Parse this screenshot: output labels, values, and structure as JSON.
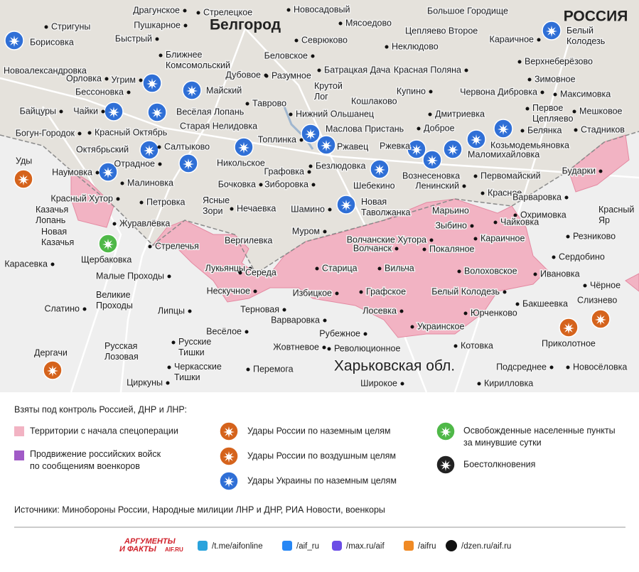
{
  "map": {
    "country_label": "РОССИЯ",
    "city_label": "Белгород",
    "region_label": "Харьковская обл.",
    "places": [
      "Драгунское",
      "Стрелецкое",
      "Новосадовый",
      "Большое Городище",
      "Стригуны",
      "Пушкарное",
      "Мясоедово",
      "Цепляево Второе",
      [
        "Белый",
        "Колодезь"
      ],
      "Борисовка",
      "Быстрый",
      "Севрюково",
      "Неклюдово",
      "Караичное",
      [
        "Ближнее",
        "Комсомольский"
      ],
      "Беловское",
      "Верхнеберёзово",
      "Новоалександровка",
      "Дубовое",
      "Разумное",
      "Батрацкая Дача",
      "Красная Поляна",
      "Угрим",
      "Орловка",
      "Майский",
      [
        "Крутой",
        "Лог"
      ],
      "Кошлаково",
      "Купино",
      "Зимовное",
      "Бессоновка",
      "Червона Дибровка",
      "Максимовка",
      "Таврово",
      "Байцуры",
      "Чайки",
      "Весёлая Лопань",
      "Нижний Ольшанец",
      "Дмитриевка",
      [
        "Первое",
        "Цепляево"
      ],
      "Мешковое",
      "Богун-Городок",
      "Красный Октябрь",
      "Старая Нелидовка",
      "Маслова Пристань",
      "Доброе",
      "Белянка",
      "Стадников",
      "Козьмодемьяновка",
      "Октябрьский",
      "Салтыково",
      "Топлинка",
      "Ржавец",
      "Ржевка",
      "Маломихайловка",
      "Наумовка",
      "Отрадное",
      "Никольское",
      "Безлюдовка",
      "Шебекино",
      "Вознесеновка",
      "Первомайский",
      "Бударки",
      "Уды",
      "Графовка",
      "Малиновка",
      "Бочковка",
      "Зиборовка",
      "Ленинский",
      "Красное",
      "Варваровка",
      "Красный Хутор",
      "Петровка",
      [
        "Ясные",
        "Зори"
      ],
      "Нечаевка",
      "Шамино",
      [
        "Новая",
        "Таволжанка"
      ],
      "Марьино",
      [
        "Красный",
        "Яр"
      ],
      [
        "Казачья",
        "Лопань"
      ],
      "Журавлёвка",
      "Охримовка",
      "Чайковка",
      "Зыбино",
      [
        "Новая",
        "Казачья"
      ],
      "Муром",
      "Резниково",
      "Вергилевка",
      "Волчанские Хутора",
      "Караичное",
      "Щербаковка",
      "Стрелечья",
      "Волчанск",
      "Покаляное",
      "Карасевка",
      "Сердобино",
      "Лукьянцы",
      "Середа",
      "Старица",
      "Вильча",
      "Волоховское",
      "Ивановка",
      "Малые Проходы",
      "Чёрное",
      "Нескучное",
      "Избицкое",
      "Графское",
      "Белый Колодезь",
      [
        "Великие",
        "Проходы"
      ],
      "Бакшеевка",
      "Слизнево",
      "Терновая",
      "Юрченково",
      "Липцы",
      "Слатино",
      "Лосевка",
      "Варваровка",
      "Украинское",
      "Весёлое",
      "Рубежное",
      "Приколотное",
      "Котовка",
      "Жовтневое",
      "Революционное",
      [
        "Русская",
        "Лозовая"
      ],
      "Дергачи",
      [
        "Русские",
        "Тишки"
      ],
      "Подсреднее",
      "Новосёловка",
      [
        "Черкасские",
        "Тишки"
      ],
      "Перемога",
      "Широкое",
      "Циркуны",
      "Кирилловка"
    ]
  },
  "legend": {
    "heading": "Взяты под контроль Россией, ДНР и ЛНР:",
    "territory": "Территории с начала спецоперации",
    "advance": [
      "Продвижение российских войск",
      "по сообщениям военкоров"
    ],
    "ru_ground": "Удары России по наземным целям",
    "ru_air": "Удары России по воздушным целям",
    "ua_ground": "Удары Украины по наземным целям",
    "liberated": [
      "Освобожденные населенные пункты",
      "за минувшие сутки"
    ],
    "clashes": "Боестолкновения",
    "sources": "Источники: Минобороны России, Народные милиции ЛНР и ДНР, РИА Новости, военкоры"
  },
  "footer": {
    "logo": [
      "АРГУМЕНТЫ",
      "И ФАКТЫ"
    ],
    "logo_site": "AIF.RU",
    "links": [
      "/t.me/aifonline",
      "/aif_ru",
      "/max.ru/aif",
      "/aifru",
      "/dzen.ru/aif.ru"
    ]
  }
}
